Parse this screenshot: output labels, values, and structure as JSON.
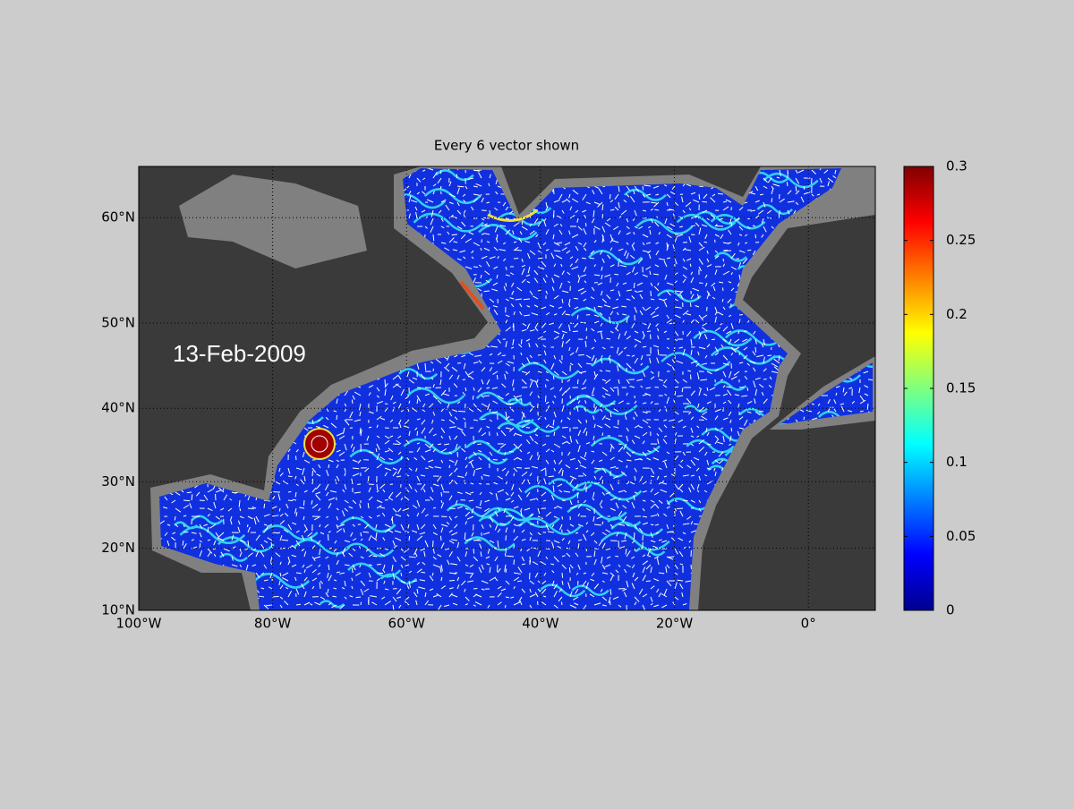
{
  "chart_data": {
    "type": "map",
    "title": "Every 6 vector shown",
    "annotation": "13-Feb-2009",
    "projection": "mercator",
    "xlim": [
      -100,
      10
    ],
    "xticks": [
      {
        "value": -100,
        "label": "100°W"
      },
      {
        "value": -80,
        "label": "80°W"
      },
      {
        "value": -60,
        "label": "60°W"
      },
      {
        "value": -40,
        "label": "40°W"
      },
      {
        "value": -20,
        "label": "20°W"
      },
      {
        "value": 0,
        "label": "0°"
      }
    ],
    "ylim": [
      10,
      64
    ],
    "yticks": [
      {
        "value": 10,
        "label": "10°N"
      },
      {
        "value": 20,
        "label": "20°N"
      },
      {
        "value": 30,
        "label": "30°N"
      },
      {
        "value": 40,
        "label": "40°N"
      },
      {
        "value": 50,
        "label": "50°N"
      },
      {
        "value": 60,
        "label": "60°N"
      }
    ],
    "grid": true,
    "colormap": "jet",
    "clim": [
      0,
      0.3
    ],
    "cticks": [
      0,
      0.05,
      0.1,
      0.15,
      0.2,
      0.25,
      0.3
    ]
  }
}
